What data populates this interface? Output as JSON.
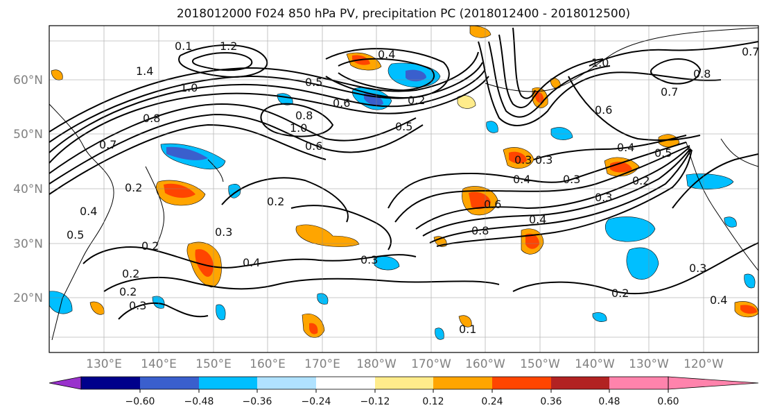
{
  "title": "2018012000 F024 850 hPa PV, precipitation PC (2018012400 - 2018012500)",
  "lat_labels": [
    "60°N",
    "50°N",
    "40°N",
    "30°N",
    "20°N"
  ],
  "lon_labels": [
    "130°E",
    "140°E",
    "150°E",
    "160°E",
    "170°E",
    "180°W",
    "170°W",
    "160°W",
    "150°W",
    "140°W",
    "130°W",
    "120°W"
  ],
  "colorbar": {
    "ticks": [
      "−0.60",
      "−0.48",
      "−0.36",
      "−0.24",
      "−0.12",
      "0.12",
      "0.24",
      "0.36",
      "0.48",
      "0.60"
    ],
    "colors": [
      "#9932cc",
      "#00008b",
      "#3a5fcd",
      "#00bfff",
      "#b0e2ff",
      "#ffffff",
      "#ffec8b",
      "#ffa500",
      "#ff4500",
      "#b22222",
      "#ff83ac"
    ]
  },
  "contour_labels": [
    "1.2",
    "1.4",
    "1.0",
    "0.8",
    "0.6",
    "0.5",
    "0.4",
    "0.3",
    "0.2",
    "0.7",
    "0.1",
    "0.6",
    "0.5",
    "0.4",
    "0.3",
    "0.2",
    "0.4",
    "0.3",
    "0.8",
    "0.6",
    "0.3",
    "0.2",
    "0.4",
    "0.3",
    "0.2",
    "0.4",
    "0.2",
    "0.3",
    "0.1",
    "0.8",
    "1.0",
    "0.7",
    "0.6",
    "0.4",
    "0.5",
    "0.2",
    "1.0",
    "0.8",
    "0.7",
    "0.5",
    "0.2",
    "0.3",
    "0.2",
    "0.4",
    "0.3"
  ]
}
